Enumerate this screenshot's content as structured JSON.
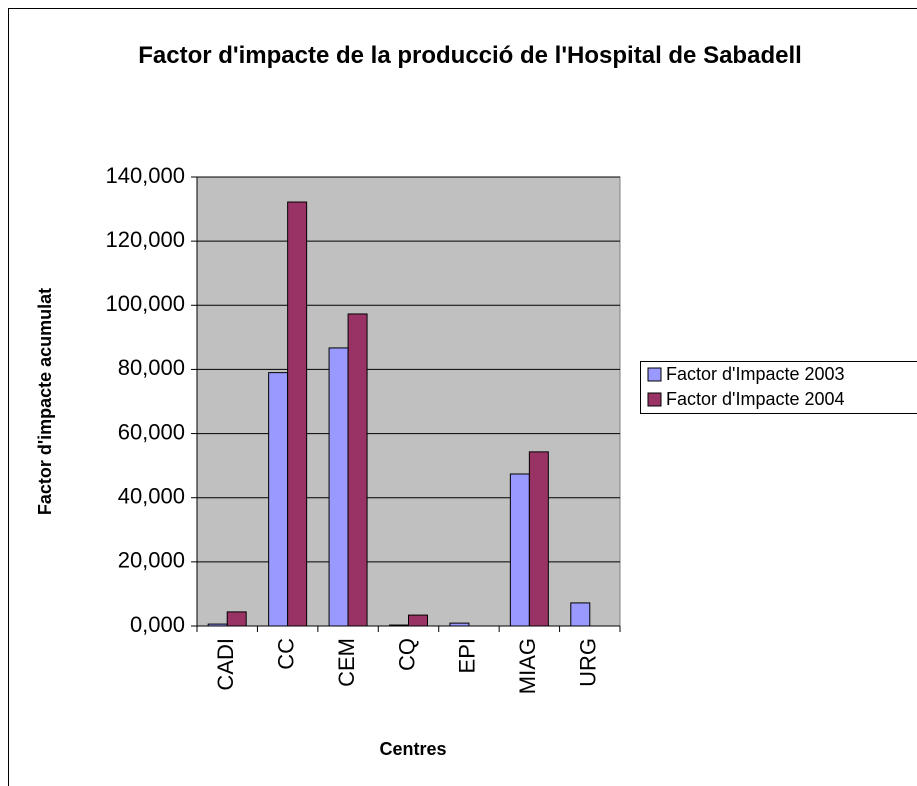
{
  "chart_data": {
    "type": "bar",
    "title": "Factor d'impacte de la producció de l'Hospital de Sabadell",
    "x_label": "Centres",
    "y_label": "Factor d'impacte acumulat",
    "categories": [
      "CADI",
      "CC",
      "CEM",
      "CQ",
      "EPI",
      "MIAG",
      "URG"
    ],
    "series": [
      {
        "name": "Factor d'Impacte 2003",
        "color": "#9999ff",
        "values": [
          0.6,
          79,
          86.7,
          0.3,
          0.9,
          47.4,
          7.2
        ]
      },
      {
        "name": "Factor d'Impacte 2004",
        "color": "#993366",
        "values": [
          4.4,
          132.2,
          97.3,
          3.4,
          0,
          54.3,
          0
        ]
      }
    ],
    "ylim": [
      0,
      140
    ],
    "yticks": [
      {
        "value": 0,
        "label": "0,000"
      },
      {
        "value": 20,
        "label": "20,000"
      },
      {
        "value": 40,
        "label": "40,000"
      },
      {
        "value": 60,
        "label": "60,000"
      },
      {
        "value": 80,
        "label": "80,000"
      },
      {
        "value": 100,
        "label": "100,000"
      },
      {
        "value": 120,
        "label": "120,000"
      },
      {
        "value": 140,
        "label": "140,000"
      }
    ],
    "grid": true,
    "legend": "right"
  }
}
